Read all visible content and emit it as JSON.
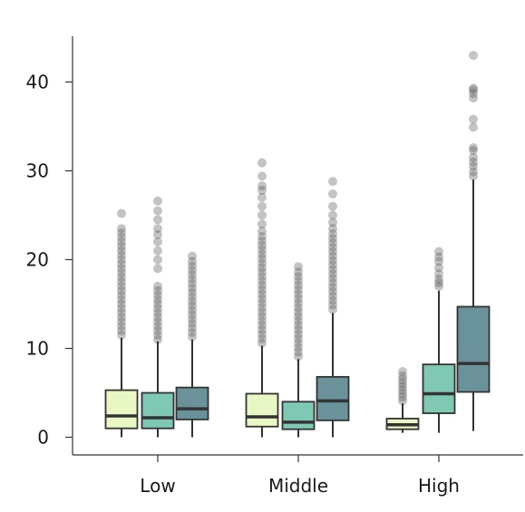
{
  "chart_data": {
    "type": "box",
    "title": "",
    "xlabel": "",
    "ylabel": "",
    "ylim": [
      -2,
      45
    ],
    "yticks": [
      0,
      10,
      20,
      30,
      40
    ],
    "grid": false,
    "legend": "none",
    "categories": [
      "Low",
      "Middle",
      "High"
    ],
    "series_colors": [
      "#e8f7c4",
      "#7ec8b4",
      "#6a929a"
    ],
    "groups": [
      {
        "category": "Low",
        "boxes": [
          {
            "min": 0,
            "q1": 1.0,
            "median": 2.4,
            "q3": 5.3,
            "max": 11.2,
            "fliers": [
              11.5,
              12,
              12.5,
              13,
              13.5,
              14,
              14.5,
              15,
              15.5,
              16,
              16.5,
              17,
              17.5,
              18,
              18.5,
              19,
              19.5,
              20,
              20.5,
              21,
              21.5,
              22,
              22.5,
              23,
              23.5,
              25.2
            ]
          },
          {
            "min": 0,
            "q1": 1.0,
            "median": 2.2,
            "q3": 5.0,
            "max": 10.8,
            "fliers": [
              11,
              11.5,
              12,
              12.5,
              13,
              13.5,
              14,
              14.5,
              15,
              15.5,
              16,
              16.5,
              17,
              19,
              20,
              21,
              22,
              22.8,
              23.5,
              24.5,
              25.5,
              26.6
            ]
          },
          {
            "min": 0,
            "q1": 2.0,
            "median": 3.2,
            "q3": 5.6,
            "max": 11.0,
            "fliers": [
              11.3,
              11.8,
              12.3,
              12.8,
              13.3,
              13.8,
              14.3,
              14.8,
              15.3,
              15.8,
              16.3,
              16.8,
              17.3,
              17.8,
              18.3,
              18.8,
              19.3,
              19.8,
              20.4
            ]
          }
        ]
      },
      {
        "category": "Middle",
        "boxes": [
          {
            "min": 0,
            "q1": 1.2,
            "median": 2.3,
            "q3": 4.9,
            "max": 10.3,
            "fliers": [
              10.6,
              11.1,
              11.6,
              12.1,
              12.6,
              13.1,
              13.6,
              14.1,
              14.6,
              15.1,
              15.6,
              16.1,
              16.6,
              17.1,
              17.6,
              18.1,
              18.6,
              19.1,
              19.6,
              20.1,
              20.6,
              21.1,
              21.6,
              22.1,
              22.6,
              23.2,
              24,
              25,
              26,
              27,
              27.8,
              28.3,
              29.4,
              30.9
            ]
          },
          {
            "min": 0,
            "q1": 0.9,
            "median": 1.7,
            "q3": 4.0,
            "max": 8.8,
            "fliers": [
              9.1,
              9.6,
              10.1,
              10.6,
              11.1,
              11.6,
              12.1,
              12.6,
              13.1,
              13.6,
              14.1,
              14.6,
              15.1,
              15.6,
              16.1,
              16.6,
              17.1,
              17.6,
              18.1,
              18.6,
              19.2
            ]
          },
          {
            "min": 0,
            "q1": 1.9,
            "median": 4.1,
            "q3": 6.8,
            "max": 14.0,
            "fliers": [
              14.4,
              14.9,
              15.4,
              15.9,
              16.4,
              16.9,
              17.4,
              17.9,
              18.4,
              18.9,
              19.4,
              19.9,
              20.4,
              20.9,
              21.4,
              21.9,
              22.4,
              22.9,
              23.5,
              24.2,
              25,
              26,
              27.4,
              28.8
            ]
          }
        ]
      },
      {
        "category": "High",
        "boxes": [
          {
            "min": 0.5,
            "q1": 0.9,
            "median": 1.4,
            "q3": 2.1,
            "max": 3.8,
            "fliers": [
              4.1,
              4.5,
              4.9,
              5.3,
              5.7,
              6.1,
              6.5,
              6.9,
              7.4
            ]
          },
          {
            "min": 0.5,
            "q1": 2.7,
            "median": 4.9,
            "q3": 8.2,
            "max": 16.5,
            "fliers": [
              17,
              17.4,
              17.8,
              18.4,
              19.1,
              19.8,
              20.3,
              20.9
            ]
          },
          {
            "min": 0.7,
            "q1": 5.1,
            "median": 8.3,
            "q3": 14.7,
            "max": 29.0,
            "fliers": [
              29.4,
              29.9,
              30.5,
              31,
              31.5,
              32.3,
              32.6,
              34.9,
              35.8,
              38.2,
              38.7,
              39.1,
              39.3,
              43.0
            ]
          }
        ]
      }
    ]
  }
}
